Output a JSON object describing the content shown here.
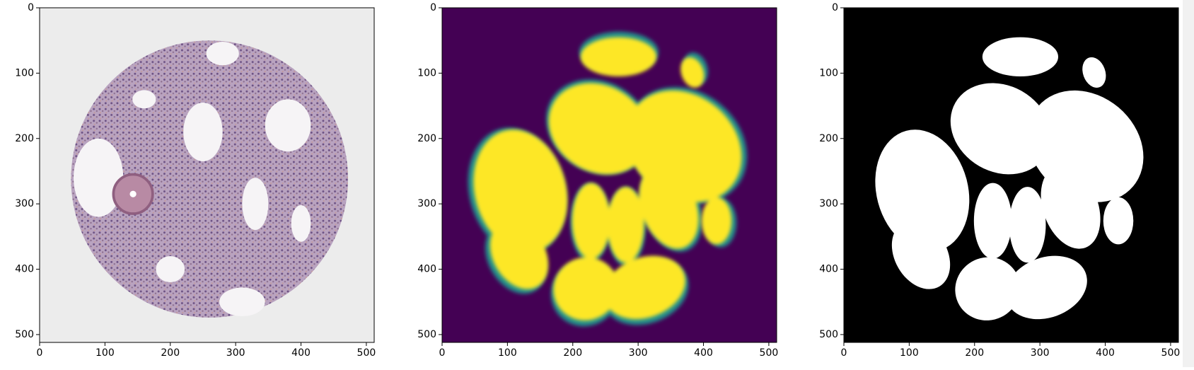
{
  "chart_data": [
    {
      "type": "image",
      "xlim": [
        0,
        512
      ],
      "ylim": [
        512,
        0
      ],
      "xticks": [
        0,
        100,
        200,
        300,
        400,
        500
      ],
      "yticks": [
        0,
        100,
        200,
        300,
        400,
        500
      ]
    },
    {
      "type": "image",
      "xlim": [
        0,
        512
      ],
      "ylim": [
        512,
        0
      ],
      "xticks": [
        0,
        100,
        200,
        300,
        400,
        500
      ],
      "yticks": [
        0,
        100,
        200,
        300,
        400,
        500
      ]
    },
    {
      "type": "image",
      "xlim": [
        0,
        512
      ],
      "ylim": [
        512,
        0
      ],
      "xticks": [
        0,
        100,
        200,
        300,
        400,
        500
      ],
      "yticks": [
        0,
        100,
        200,
        300,
        400,
        500
      ]
    }
  ]
}
